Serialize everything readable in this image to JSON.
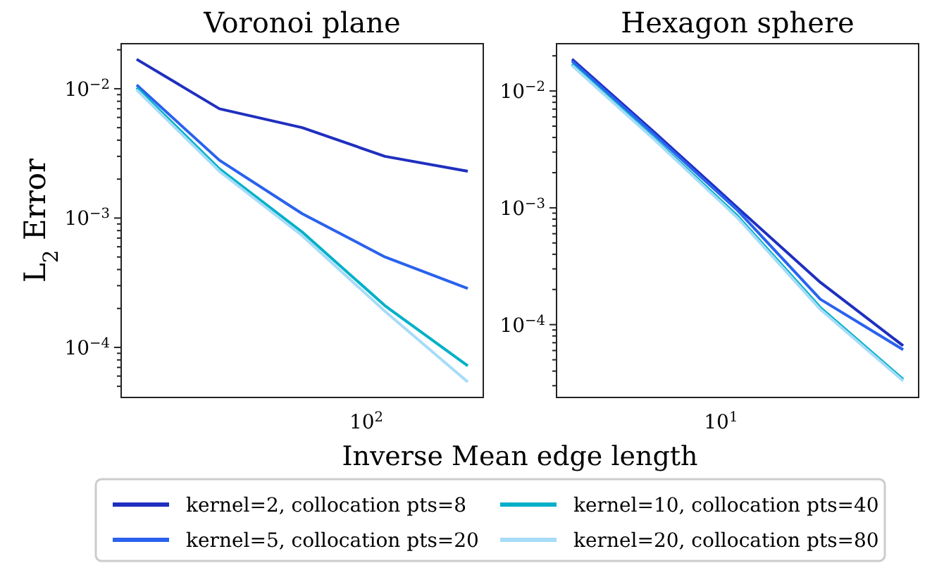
{
  "chart_data": [
    {
      "type": "line",
      "title": "Voronoi plane",
      "ylabel": "L$_{2}$ Error",
      "xlabel": "Inverse Mean edge length",
      "log": "y",
      "grid": false,
      "legend": "bottom",
      "categories": [
        null,
        null,
        null,
        null,
        null
      ],
      "annotations": [
        "10$^{2}$"
      ],
      "ylim": [
        4.1e-05,
        0.0223
      ],
      "yticks": [
        {
          "value": 5e-05,
          "label": null
        },
        {
          "value": 6e-05,
          "label": null
        },
        {
          "value": 7e-05,
          "label": null
        },
        {
          "value": 8e-05,
          "label": null
        },
        {
          "value": 9e-05,
          "label": null
        },
        {
          "value": 0.0001,
          "label": "10$^{−4}$"
        },
        {
          "value": 0.0002,
          "label": null
        },
        {
          "value": 0.0003,
          "label": null
        },
        {
          "value": 0.0004,
          "label": null
        },
        {
          "value": 0.0005,
          "label": null
        },
        {
          "value": 0.0006,
          "label": null
        },
        {
          "value": 0.0007,
          "label": null
        },
        {
          "value": 0.0008,
          "label": null
        },
        {
          "value": 0.0009,
          "label": null
        },
        {
          "value": 0.001,
          "label": "10$^{−3}$"
        },
        {
          "value": 0.002,
          "label": null
        },
        {
          "value": 0.003,
          "label": null
        },
        {
          "value": 0.004,
          "label": null
        },
        {
          "value": 0.005,
          "label": null
        },
        {
          "value": 0.006,
          "label": null
        },
        {
          "value": 0.007,
          "label": null
        },
        {
          "value": 0.008,
          "label": null
        },
        {
          "value": 0.009,
          "label": null
        },
        {
          "value": 0.01,
          "label": "10$^{−2}$"
        },
        {
          "value": 0.02,
          "label": null
        }
      ],
      "series": [
        {
          "name": "kernel=2, collocation pts=8",
          "color": "#1f2fbf",
          "values": [
            0.0169,
            0.007,
            0.005,
            0.003,
            0.0023
          ]
        },
        {
          "name": "kernel=5, collocation pts=20",
          "color": "#2a62ee",
          "values": [
            0.0107,
            0.0028,
            0.00108,
            0.0005,
            0.000285
          ]
        },
        {
          "name": "kernel=10, collocation pts=40",
          "color": "#00b0c8",
          "values": [
            0.0102,
            0.0024,
            0.00078,
            0.00021,
            7.2e-05
          ]
        },
        {
          "name": "kernel=20, collocation pts=80",
          "color": "#a6dcf8",
          "values": [
            0.0098,
            0.0023,
            0.00073,
            0.00019,
            5.4e-05
          ]
        }
      ]
    },
    {
      "type": "line",
      "title": "Hexagon sphere",
      "log": "y",
      "grid": false,
      "categories": [
        null,
        null,
        null,
        null,
        null
      ],
      "annotations": [
        "10$^{1}$"
      ],
      "ylim": [
        2.38e-05,
        0.0254
      ],
      "yticks": [
        {
          "value": 3e-05,
          "label": null
        },
        {
          "value": 4e-05,
          "label": null
        },
        {
          "value": 5e-05,
          "label": null
        },
        {
          "value": 6e-05,
          "label": null
        },
        {
          "value": 7e-05,
          "label": null
        },
        {
          "value": 8e-05,
          "label": null
        },
        {
          "value": 9e-05,
          "label": null
        },
        {
          "value": 0.0001,
          "label": "10$^{−4}$"
        },
        {
          "value": 0.0002,
          "label": null
        },
        {
          "value": 0.0003,
          "label": null
        },
        {
          "value": 0.0004,
          "label": null
        },
        {
          "value": 0.0005,
          "label": null
        },
        {
          "value": 0.0006,
          "label": null
        },
        {
          "value": 0.0007,
          "label": null
        },
        {
          "value": 0.0008,
          "label": null
        },
        {
          "value": 0.0009,
          "label": null
        },
        {
          "value": 0.001,
          "label": "10$^{−3}$"
        },
        {
          "value": 0.002,
          "label": null
        },
        {
          "value": 0.003,
          "label": null
        },
        {
          "value": 0.004,
          "label": null
        },
        {
          "value": 0.005,
          "label": null
        },
        {
          "value": 0.006,
          "label": null
        },
        {
          "value": 0.007,
          "label": null
        },
        {
          "value": 0.008,
          "label": null
        },
        {
          "value": 0.009,
          "label": null
        },
        {
          "value": 0.01,
          "label": "10$^{−2}$"
        },
        {
          "value": 0.02,
          "label": null
        }
      ],
      "series": [
        {
          "color": "#1f2fbf",
          "values": [
            0.0187,
            0.0044,
            0.001,
            0.00023,
            6.6e-05
          ]
        },
        {
          "color": "#2a62ee",
          "values": [
            0.018,
            0.0042,
            0.00095,
            0.000165,
            6.1e-05
          ]
        },
        {
          "color": "#00b0c8",
          "values": [
            0.017,
            0.0039,
            0.00085,
            0.00014,
            3.4e-05
          ]
        },
        {
          "color": "#a6dcf8",
          "values": [
            0.0165,
            0.0038,
            0.00082,
            0.000135,
            3.3e-05
          ]
        }
      ]
    }
  ]
}
